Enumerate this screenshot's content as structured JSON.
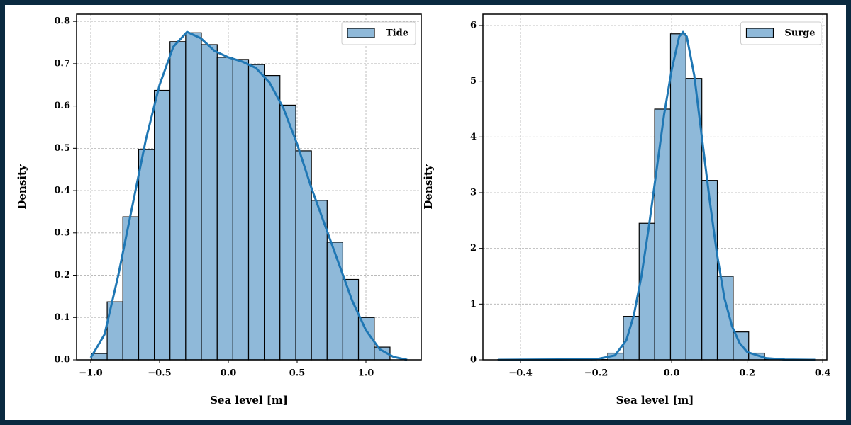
{
  "chart_data": [
    {
      "type": "histogram",
      "xlabel": "Sea level [m]",
      "ylabel": "Density",
      "label": "Tide",
      "color": "#8fb9d9",
      "edgecolor": "#000000",
      "grid": true,
      "legend": "upper right",
      "bins": [
        -0.995,
        -0.881,
        -0.767,
        -0.652,
        -0.538,
        -0.424,
        -0.31,
        -0.196,
        -0.081,
        0.033,
        0.147,
        0.261,
        0.375,
        0.49,
        0.604,
        0.718,
        0.832,
        0.946,
        1.061,
        1.175
      ],
      "values": [
        0.015,
        0.137,
        0.338,
        0.497,
        0.637,
        0.752,
        0.773,
        0.745,
        0.715,
        0.71,
        0.698,
        0.672,
        0.602,
        0.494,
        0.377,
        0.278,
        0.19,
        0.1,
        0.03
      ],
      "kde": {
        "color": "#1f77b4",
        "x": [
          -1.0,
          -0.9,
          -0.8,
          -0.7,
          -0.6,
          -0.5,
          -0.4,
          -0.3,
          -0.2,
          -0.1,
          0.0,
          0.1,
          0.2,
          0.3,
          0.4,
          0.5,
          0.6,
          0.7,
          0.8,
          0.9,
          1.0,
          1.1,
          1.2,
          1.3
        ],
        "values": [
          0.005,
          0.06,
          0.2,
          0.36,
          0.52,
          0.65,
          0.74,
          0.775,
          0.76,
          0.73,
          0.715,
          0.705,
          0.69,
          0.655,
          0.595,
          0.51,
          0.41,
          0.32,
          0.23,
          0.14,
          0.07,
          0.025,
          0.007,
          0.0
        ]
      },
      "xlim": [
        -1.103,
        1.402
      ],
      "ylim": [
        0,
        0.817
      ],
      "xticks": [
        {
          "value": -1.0,
          "label": "−1.0"
        },
        {
          "value": -0.5,
          "label": "−0.5"
        },
        {
          "value": 0,
          "label": "0.0"
        },
        0.5,
        {
          "value": 1,
          "label": "1.0"
        }
      ],
      "yticks": [
        {
          "value": 0,
          "label": "0.0"
        },
        0.1,
        0.2,
        0.3,
        0.4,
        0.5,
        0.6,
        0.7,
        0.8
      ]
    },
    {
      "type": "histogram",
      "xlabel": "Sea level [m]",
      "ylabel": "Density",
      "label": "Surge",
      "color": "#8fb9d9",
      "edgecolor": "#000000",
      "grid": true,
      "legend": "upper right",
      "bins": [
        -0.46,
        -0.418,
        -0.377,
        -0.335,
        -0.294,
        -0.252,
        -0.211,
        -0.169,
        -0.128,
        -0.086,
        -0.045,
        -0.003,
        0.038,
        0.08,
        0.121,
        0.163,
        0.204,
        0.246,
        0.287,
        0.329,
        0.37
      ],
      "values": [
        0.003,
        0,
        0,
        0,
        0,
        0.002,
        0.005,
        0.12,
        0.78,
        2.45,
        4.5,
        5.85,
        5.05,
        3.22,
        1.5,
        0.5,
        0.12,
        0.01,
        0,
        0.003
      ],
      "kde": {
        "color": "#1f77b4",
        "x": [
          -0.46,
          -0.2,
          -0.15,
          -0.12,
          -0.1,
          -0.08,
          -0.06,
          -0.04,
          -0.02,
          0.0,
          0.02,
          0.03,
          0.04,
          0.06,
          0.08,
          0.1,
          0.12,
          0.14,
          0.16,
          0.18,
          0.2,
          0.25,
          0.3,
          0.38
        ],
        "values": [
          0,
          0.01,
          0.08,
          0.35,
          0.8,
          1.5,
          2.4,
          3.4,
          4.4,
          5.2,
          5.8,
          5.88,
          5.8,
          5.1,
          4.0,
          2.9,
          1.9,
          1.1,
          0.6,
          0.3,
          0.14,
          0.03,
          0.005,
          0
        ]
      },
      "xlim": [
        -0.4995,
        0.411
      ],
      "ylim": [
        0,
        6.203
      ],
      "xticks": [
        {
          "value": -0.4,
          "label": "−0.4"
        },
        {
          "value": -0.2,
          "label": "−0.2"
        },
        {
          "value": 0,
          "label": "0.0"
        },
        0.2,
        0.4
      ],
      "yticks": [
        0,
        1,
        2,
        3,
        4,
        5,
        6
      ]
    }
  ]
}
